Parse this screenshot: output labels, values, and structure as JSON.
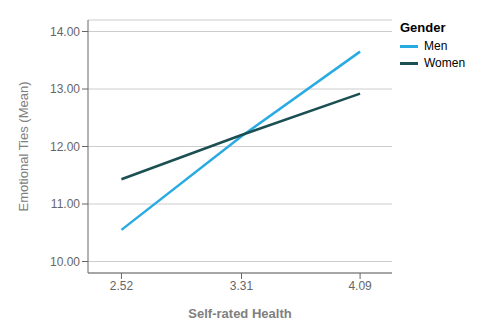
{
  "chart_data": {
    "type": "line",
    "x": [
      2.52,
      3.31,
      4.09
    ],
    "series": [
      {
        "name": "Men",
        "color": "#29ABE2",
        "values": [
          10.55,
          12.18,
          13.65
        ]
      },
      {
        "name": "Women",
        "color": "#1B4F52",
        "values": [
          11.43,
          12.2,
          12.92
        ]
      }
    ],
    "xlabel": "Self-rated Health",
    "ylabel": "Emotional Ties (Mean)",
    "xlim": [
      2.3,
      4.3
    ],
    "ylim": [
      9.8,
      14.2
    ],
    "xticks": [
      2.52,
      3.31,
      4.09
    ],
    "yticks": [
      {
        "value": 10,
        "label": "10.00"
      },
      {
        "value": 11,
        "label": "11.00"
      },
      {
        "value": 12,
        "label": "12.00"
      },
      {
        "value": 13,
        "label": "13.00"
      },
      {
        "value": 14,
        "label": "14.00"
      }
    ],
    "grid": true,
    "legend": "right",
    "legend_title": "Gender"
  }
}
